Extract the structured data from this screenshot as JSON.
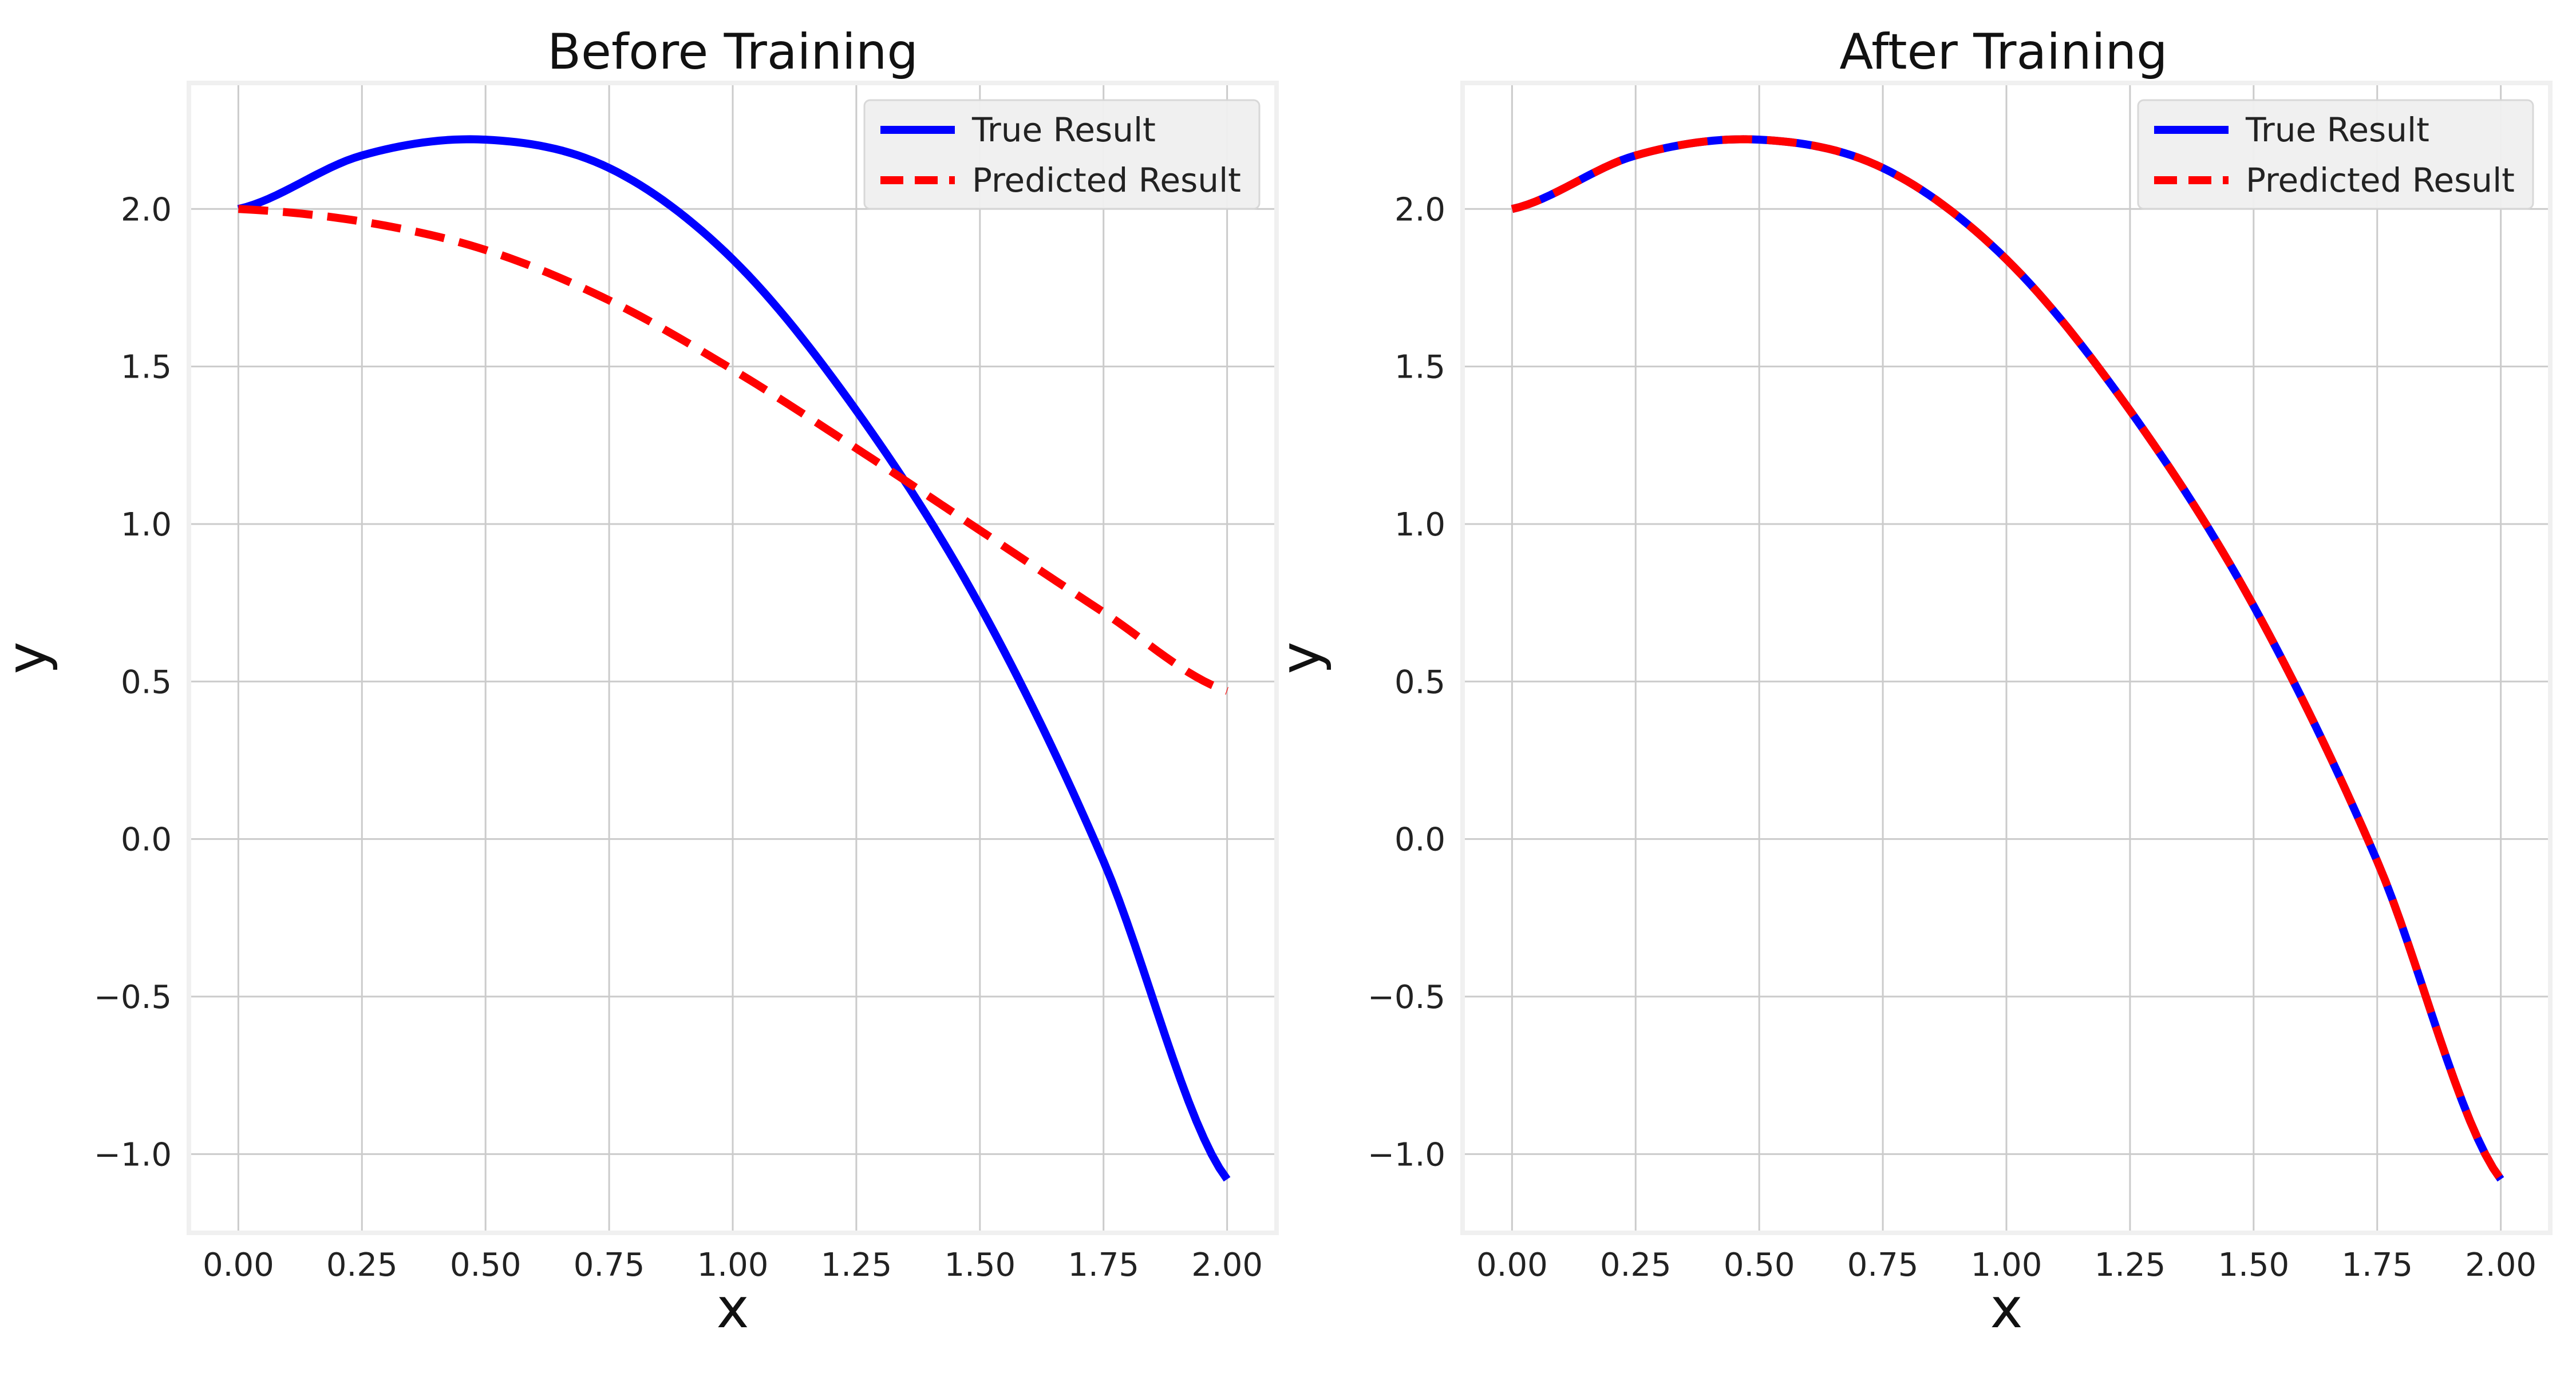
{
  "colors": {
    "true_series": "#0000ff",
    "predicted_series": "#ff0000",
    "grid": "#cbcbcb",
    "axes_frame": "#f0f0f0",
    "legend_background": "#f0f0f0"
  },
  "chart_data": [
    {
      "type": "line",
      "title": "Before Training",
      "xlabel": "x",
      "ylabel": "y",
      "xlim": [
        -0.1,
        2.1
      ],
      "ylim": [
        -1.25,
        2.4
      ],
      "grid": true,
      "legend_position": "top-right",
      "xticks": [
        "0.00",
        "0.25",
        "0.50",
        "0.75",
        "1.00",
        "1.25",
        "1.50",
        "1.75",
        "2.00"
      ],
      "xtick_values": [
        0,
        0.25,
        0.5,
        0.75,
        1.0,
        1.25,
        1.5,
        1.75,
        2.0
      ],
      "yticks": [
        "−1.0",
        "−0.5",
        "0.0",
        "0.5",
        "1.0",
        "1.5",
        "2.0"
      ],
      "ytick_values": [
        -1.0,
        -0.5,
        0.0,
        0.5,
        1.0,
        1.5,
        2.0
      ],
      "x": [
        0,
        0.25,
        0.5,
        0.75,
        1.0,
        1.25,
        1.5,
        1.75,
        2.0
      ],
      "series": [
        {
          "name": "True Result",
          "style": "solid",
          "values": [
            2.0,
            2.17,
            2.22,
            2.13,
            1.84,
            1.36,
            0.74,
            -0.07,
            -1.08
          ]
        },
        {
          "name": "Predicted Result",
          "style": "dashed",
          "values": [
            2.0,
            1.96,
            1.87,
            1.71,
            1.49,
            1.24,
            0.98,
            0.72,
            0.47
          ]
        }
      ]
    },
    {
      "type": "line",
      "title": "After Training",
      "xlabel": "x",
      "ylabel": "y",
      "xlim": [
        -0.1,
        2.1
      ],
      "ylim": [
        -1.25,
        2.4
      ],
      "grid": true,
      "legend_position": "top-right",
      "xticks": [
        "0.00",
        "0.25",
        "0.50",
        "0.75",
        "1.00",
        "1.25",
        "1.50",
        "1.75",
        "2.00"
      ],
      "xtick_values": [
        0,
        0.25,
        0.5,
        0.75,
        1.0,
        1.25,
        1.5,
        1.75,
        2.0
      ],
      "yticks": [
        "−1.0",
        "−0.5",
        "0.0",
        "0.5",
        "1.0",
        "1.5",
        "2.0"
      ],
      "ytick_values": [
        -1.0,
        -0.5,
        0.0,
        0.5,
        1.0,
        1.5,
        2.0
      ],
      "x": [
        0,
        0.25,
        0.5,
        0.75,
        1.0,
        1.25,
        1.5,
        1.75,
        2.0
      ],
      "series": [
        {
          "name": "True Result",
          "style": "solid",
          "values": [
            2.0,
            2.17,
            2.22,
            2.13,
            1.84,
            1.36,
            0.74,
            -0.07,
            -1.08
          ]
        },
        {
          "name": "Predicted Result",
          "style": "dashed",
          "values": [
            2.0,
            2.17,
            2.22,
            2.13,
            1.84,
            1.36,
            0.74,
            -0.07,
            -1.08
          ]
        }
      ]
    }
  ]
}
